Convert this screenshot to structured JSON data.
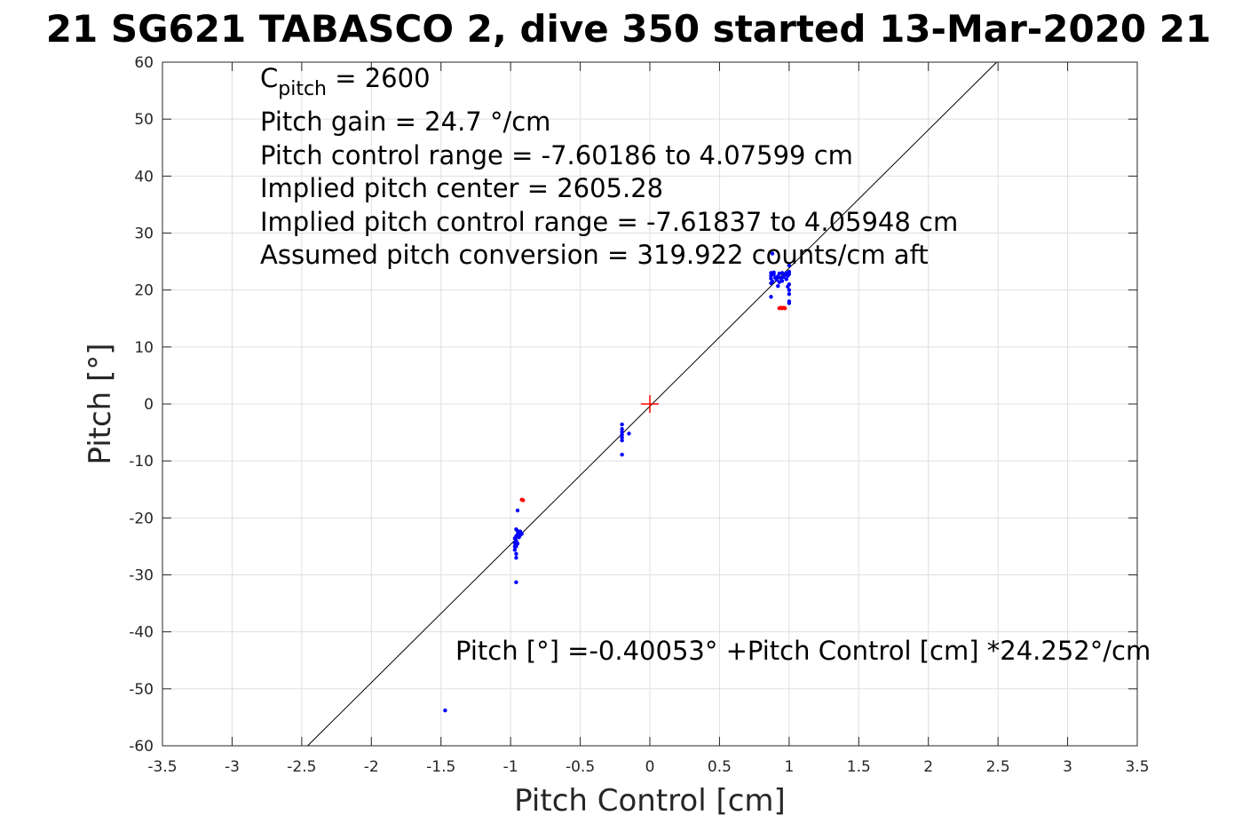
{
  "chart_data": {
    "type": "scatter",
    "title": "21 SG621 TABASCO 2, dive 350 started 13-Mar-2020 21",
    "xlabel": "Pitch Control [cm]",
    "ylabel": "Pitch [°]",
    "xlim": [
      -3.5,
      3.5
    ],
    "ylim": [
      -60,
      60
    ],
    "xticks": [
      -3.5,
      -3,
      -2.5,
      -2,
      -1.5,
      -1,
      -0.5,
      0,
      0.5,
      1,
      1.5,
      2,
      2.5,
      3,
      3.5
    ],
    "xtick_labels": [
      "-3.5",
      "-3",
      "-2.5",
      "-2",
      "-1.5",
      "-1",
      "-0.5",
      "0",
      "0.5",
      "1",
      "1.5",
      "2",
      "2.5",
      "3",
      "3.5"
    ],
    "yticks": [
      -60,
      -50,
      -40,
      -30,
      -20,
      -10,
      0,
      10,
      20,
      30,
      40,
      50,
      60
    ],
    "ytick_labels": [
      "-60",
      "-50",
      "-40",
      "-30",
      "-20",
      "-10",
      "0",
      "10",
      "20",
      "30",
      "40",
      "50",
      "60"
    ],
    "grid": true,
    "fit_line": {
      "intercept": -0.40053,
      "slope": 24.252,
      "color": "#000000"
    },
    "center_marker": {
      "x": 0,
      "y": 0,
      "color": "#ff0000"
    },
    "colors": {
      "good": "#0000ff",
      "flagged": "#ff0000",
      "axis": "#262626",
      "grid": "#dfdfdf"
    },
    "series": [
      {
        "color": "#0000ff",
        "points": [
          [
            -1.47,
            -53.8
          ],
          [
            -0.96,
            -31.3
          ],
          [
            -0.96,
            -27.0
          ],
          [
            -0.96,
            -26.3
          ],
          [
            -0.97,
            -25.6
          ],
          [
            -0.96,
            -25.0
          ],
          [
            -0.97,
            -24.4
          ],
          [
            -0.96,
            -24.0
          ],
          [
            -0.97,
            -23.6
          ],
          [
            -0.96,
            -23.2
          ],
          [
            -0.95,
            -22.9
          ],
          [
            -0.94,
            -22.6
          ],
          [
            -0.93,
            -22.4
          ],
          [
            -0.92,
            -22.8
          ],
          [
            -0.93,
            -23.0
          ],
          [
            -0.95,
            -22.3
          ],
          [
            -0.96,
            -22.0
          ],
          [
            -0.95,
            -18.7
          ],
          [
            -0.97,
            -25.0
          ],
          [
            -0.95,
            -24.5
          ],
          [
            -0.94,
            -23.4
          ],
          [
            -0.2,
            -8.9
          ],
          [
            -0.2,
            -6.4
          ],
          [
            -0.2,
            -5.9
          ],
          [
            -0.2,
            -5.4
          ],
          [
            -0.2,
            -4.9
          ],
          [
            -0.2,
            -4.4
          ],
          [
            -0.2,
            -3.6
          ],
          [
            -0.15,
            -5.2
          ],
          [
            0.87,
            18.8
          ],
          [
            0.87,
            21.2
          ],
          [
            0.87,
            22.0
          ],
          [
            0.87,
            22.5
          ],
          [
            0.87,
            23.0
          ],
          [
            0.88,
            21.5
          ],
          [
            0.89,
            22.8
          ],
          [
            0.9,
            22.2
          ],
          [
            0.91,
            21.8
          ],
          [
            0.92,
            22.4
          ],
          [
            0.93,
            22.9
          ],
          [
            0.94,
            22.1
          ],
          [
            0.95,
            21.6
          ],
          [
            0.96,
            22.3
          ],
          [
            0.97,
            22.7
          ],
          [
            0.98,
            21.9
          ],
          [
            0.99,
            22.5
          ],
          [
            1.0,
            22.8
          ],
          [
            1.0,
            23.2
          ],
          [
            1.0,
            24.3
          ],
          [
            1.0,
            21.0
          ],
          [
            1.0,
            20.0
          ],
          [
            1.0,
            19.3
          ],
          [
            1.0,
            18.0
          ],
          [
            1.0,
            17.7
          ],
          [
            0.99,
            20.6
          ],
          [
            0.98,
            23.0
          ],
          [
            0.92,
            20.7
          ],
          [
            0.89,
            23.1
          ],
          [
            0.88,
            26.4
          ],
          [
            0.95,
            23.0
          ],
          [
            0.93,
            21.4
          ]
        ]
      },
      {
        "color": "#ff0000",
        "points": [
          [
            -0.92,
            -16.8
          ],
          [
            -0.91,
            -16.9
          ],
          [
            0.93,
            16.8
          ],
          [
            0.94,
            16.9
          ],
          [
            0.95,
            16.8
          ],
          [
            0.96,
            16.9
          ],
          [
            0.97,
            16.8
          ]
        ]
      }
    ],
    "annotations": {
      "cpitch_label": "C",
      "cpitch_sub": "pitch",
      "cpitch_value": " = 2600",
      "line2": "Pitch gain = 24.7 °/cm",
      "line3": "Pitch control range = -7.60186 to 4.07599 cm",
      "line4": "Implied pitch center = 2605.28",
      "line5": "Implied pitch control range = -7.61837 to 4.05948 cm",
      "line6": "Assumed pitch conversion = 319.922 counts/cm aft",
      "fit_equation": "Pitch [°] =-0.40053° +Pitch Control [cm] *24.252°/cm"
    }
  }
}
